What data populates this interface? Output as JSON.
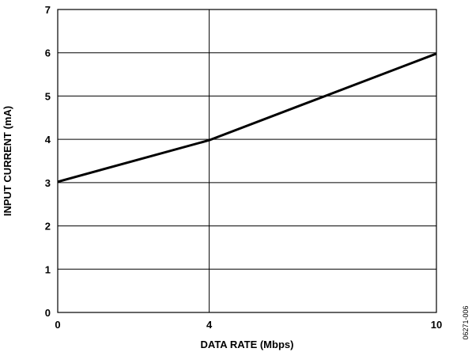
{
  "chart_data": {
    "type": "line",
    "x_ticks": [
      0,
      4,
      10
    ],
    "y_ticks": [
      0,
      1,
      2,
      3,
      4,
      5,
      6,
      7
    ],
    "xlim": [
      0,
      10
    ],
    "ylim": [
      0,
      7
    ],
    "xlabel": "DATA RATE (Mbps)",
    "ylabel": "INPUT CURRENT (mA)",
    "grid": true,
    "series": [
      {
        "x": [
          0,
          4,
          10
        ],
        "y": [
          3.02,
          3.98,
          5.98
        ]
      }
    ]
  },
  "figure_id": "06271-006",
  "colors": {
    "line": "#000000",
    "grid": "#000000",
    "background": "#ffffff"
  }
}
